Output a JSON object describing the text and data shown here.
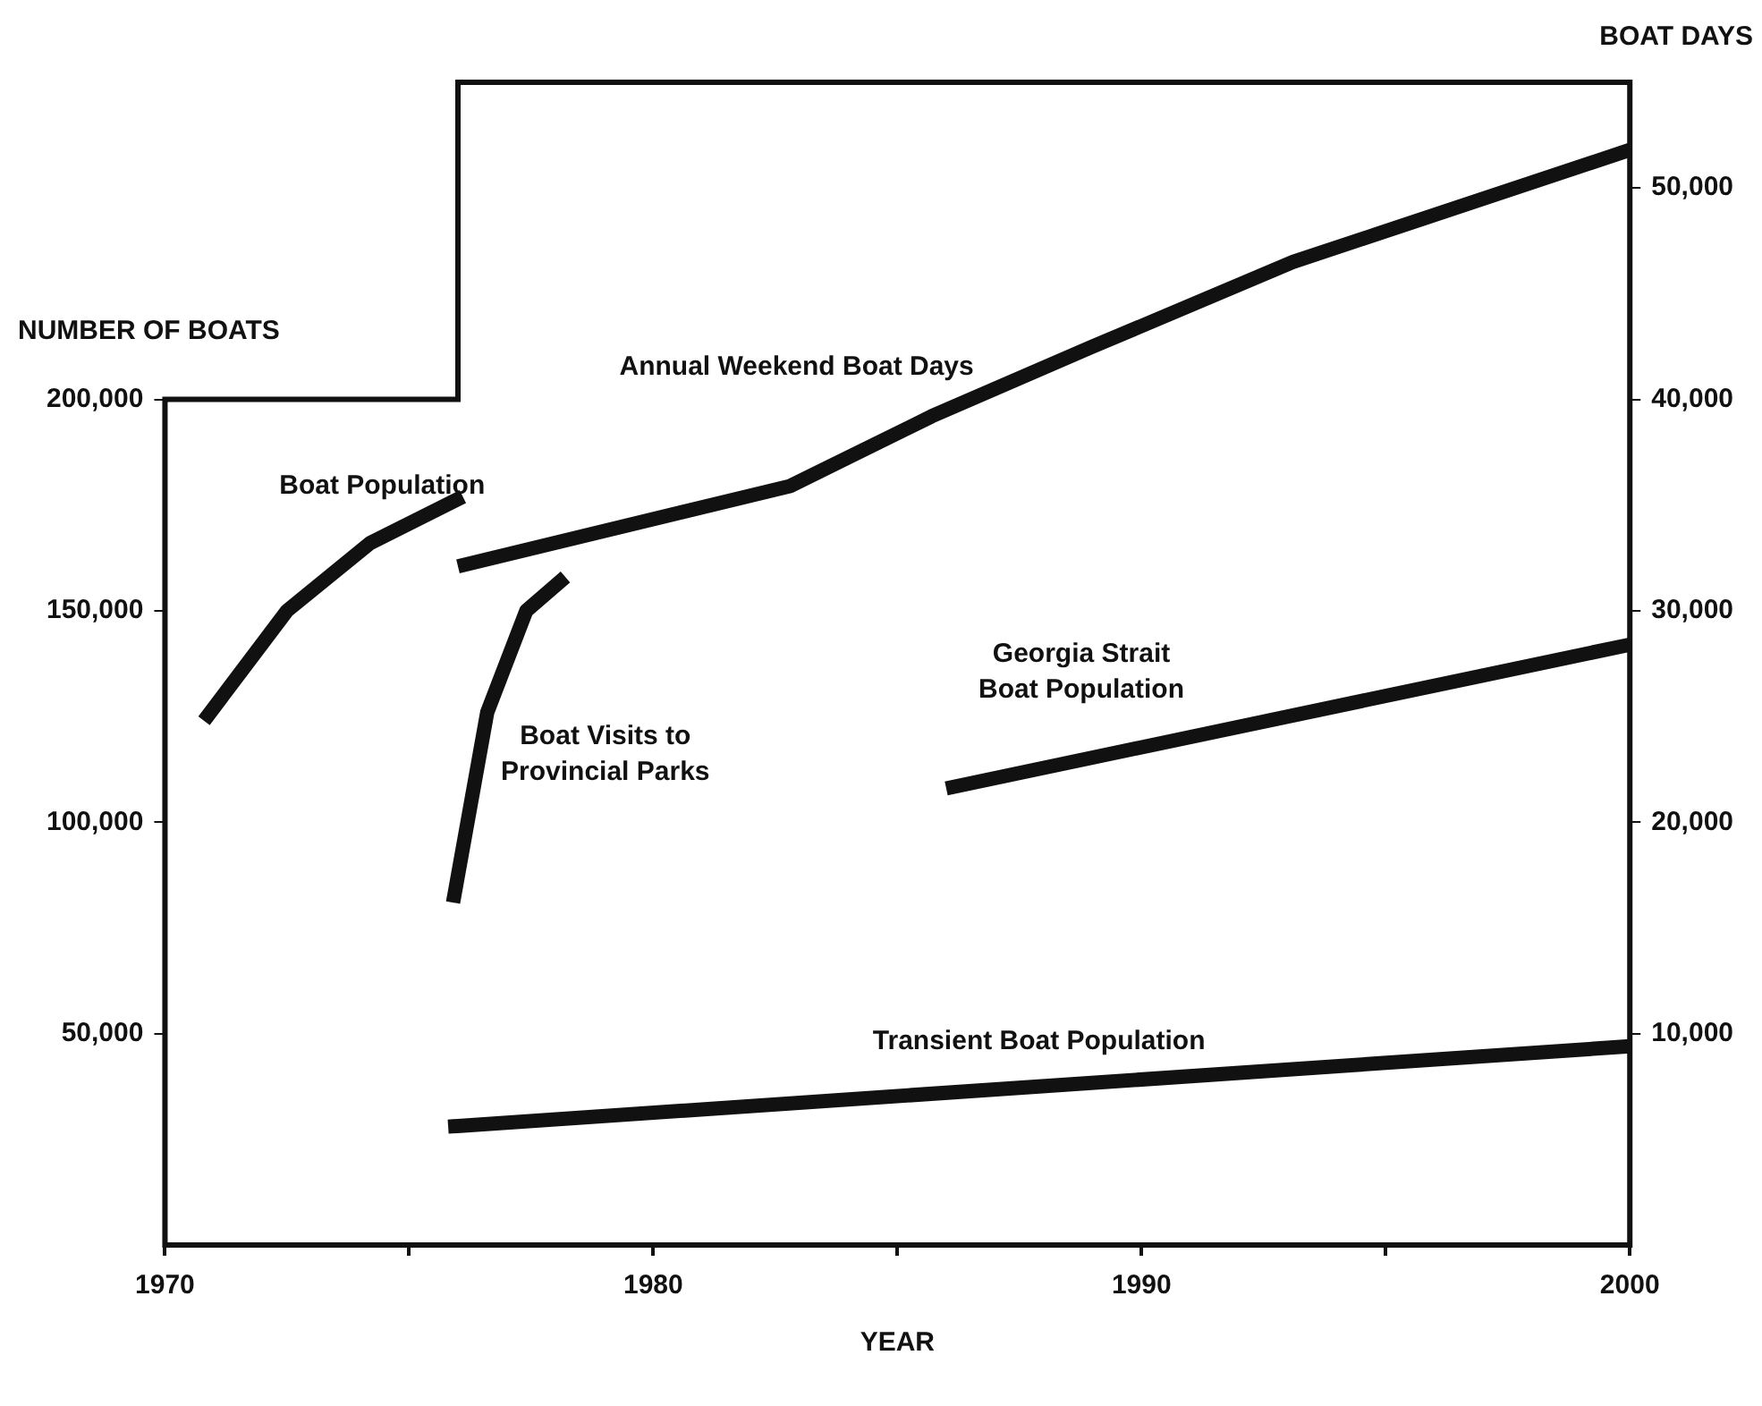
{
  "chart_data": {
    "type": "line",
    "xlabel": "YEAR",
    "ylabel": "NUMBER OF BOATS",
    "y2label": "BOAT DAYS",
    "xlim": [
      1970,
      2000
    ],
    "xticks": [
      1970,
      {
        "value": 1975,
        "label": null
      },
      1980,
      {
        "value": 1985,
        "label": null
      },
      1990,
      {
        "value": 1995,
        "label": null
      },
      2000
    ],
    "ylim": [
      0,
      275000
    ],
    "yticks": [
      {
        "value": 50000,
        "label": "50,000"
      },
      {
        "value": 100000,
        "label": "100,000"
      },
      {
        "value": 150000,
        "label": "150,000"
      },
      {
        "value": 200000,
        "label": "200,000"
      }
    ],
    "y2lim": [
      0,
      55000
    ],
    "y2ticks": [
      {
        "value": 10000,
        "label": "10,000"
      },
      {
        "value": 20000,
        "label": "20,000"
      },
      {
        "value": 30000,
        "label": "30,000"
      },
      {
        "value": 40000,
        "label": "40,000"
      },
      {
        "value": 50000,
        "label": "50,000"
      }
    ],
    "series": [
      {
        "name": "Boat Population",
        "color": "#111111",
        "x": [
          1970.8,
          1972.5,
          1974.2,
          1976.1
        ],
        "values": [
          124000,
          150000,
          166000,
          177000
        ]
      },
      {
        "name": "Annual Weekend Boat Days",
        "color": "#111111",
        "axis": "y2",
        "x": [
          1976.0,
          1982.8,
          1985.7,
          1989.0,
          1993.1,
          2000
        ],
        "values": [
          32100,
          35900,
          39200,
          42500,
          46500,
          51800
        ]
      },
      {
        "name": "Boat Visits to\nProvincial Parks",
        "color": "#111111",
        "x": [
          1975.9,
          1976.6,
          1977.4,
          1978.2
        ],
        "values": [
          81000,
          126000,
          150000,
          158000
        ]
      },
      {
        "name": "Georgia Strait\nBoat Population",
        "color": "#111111",
        "x": [
          1986.0,
          2000
        ],
        "values": [
          108000,
          142000
        ]
      },
      {
        "name": "Transient Boat Population",
        "color": "#111111",
        "x": [
          1975.8,
          2000
        ],
        "values": [
          28000,
          47000
        ]
      }
    ],
    "legend": false,
    "grid": false,
    "line_style": "solid",
    "marker": "none"
  }
}
